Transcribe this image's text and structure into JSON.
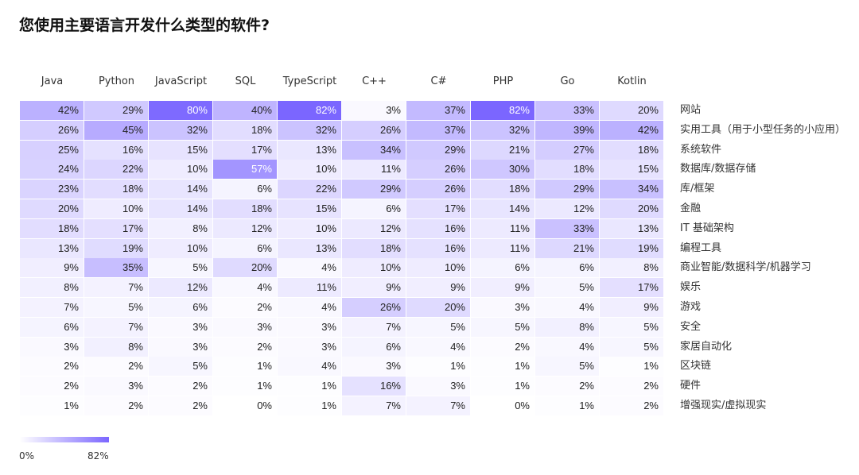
{
  "chart_data": {
    "type": "heatmap",
    "title": "您使用主要语言开发什么类型的软件?",
    "columns": [
      "Java",
      "Python",
      "JavaScript",
      "SQL",
      "TypeScript",
      "C++",
      "C#",
      "PHP",
      "Go",
      "Kotlin"
    ],
    "rows": [
      "网站",
      "实用工具（用于小型任务的小应用）",
      "系统软件",
      "数据库/数据存储",
      "库/框架",
      "金融",
      "IT 基础架构",
      "编程工具",
      "商业智能/数据科学/机器学习",
      "娱乐",
      "游戏",
      "安全",
      "家居自动化",
      "区块链",
      "硬件",
      "增强现实/虚拟现实"
    ],
    "values": [
      [
        42,
        29,
        80,
        40,
        82,
        3,
        37,
        82,
        33,
        20
      ],
      [
        26,
        45,
        32,
        18,
        32,
        26,
        37,
        32,
        39,
        42
      ],
      [
        25,
        16,
        15,
        17,
        13,
        34,
        29,
        21,
        27,
        18
      ],
      [
        24,
        22,
        10,
        57,
        10,
        11,
        26,
        30,
        18,
        15
      ],
      [
        23,
        18,
        14,
        6,
        22,
        29,
        26,
        18,
        29,
        34
      ],
      [
        20,
        10,
        14,
        18,
        15,
        6,
        17,
        14,
        12,
        20
      ],
      [
        18,
        17,
        8,
        12,
        10,
        12,
        16,
        11,
        33,
        13
      ],
      [
        13,
        19,
        10,
        6,
        13,
        18,
        16,
        11,
        21,
        19
      ],
      [
        9,
        35,
        5,
        20,
        4,
        10,
        10,
        6,
        6,
        8
      ],
      [
        8,
        7,
        12,
        4,
        11,
        9,
        9,
        9,
        5,
        17
      ],
      [
        7,
        5,
        6,
        2,
        4,
        26,
        20,
        3,
        4,
        9
      ],
      [
        6,
        7,
        3,
        3,
        3,
        7,
        5,
        5,
        8,
        5
      ],
      [
        3,
        8,
        3,
        2,
        3,
        6,
        4,
        2,
        4,
        5
      ],
      [
        2,
        2,
        5,
        1,
        4,
        3,
        1,
        1,
        5,
        1
      ],
      [
        2,
        3,
        2,
        1,
        1,
        16,
        3,
        1,
        2,
        2
      ],
      [
        1,
        2,
        2,
        0,
        1,
        7,
        7,
        0,
        1,
        2
      ]
    ],
    "value_suffix": "%",
    "scale": {
      "min": 0,
      "max": 82,
      "min_label": "0%",
      "max_label": "82%",
      "color_low": "#ffffff",
      "color_high": "#7b66ff"
    }
  }
}
